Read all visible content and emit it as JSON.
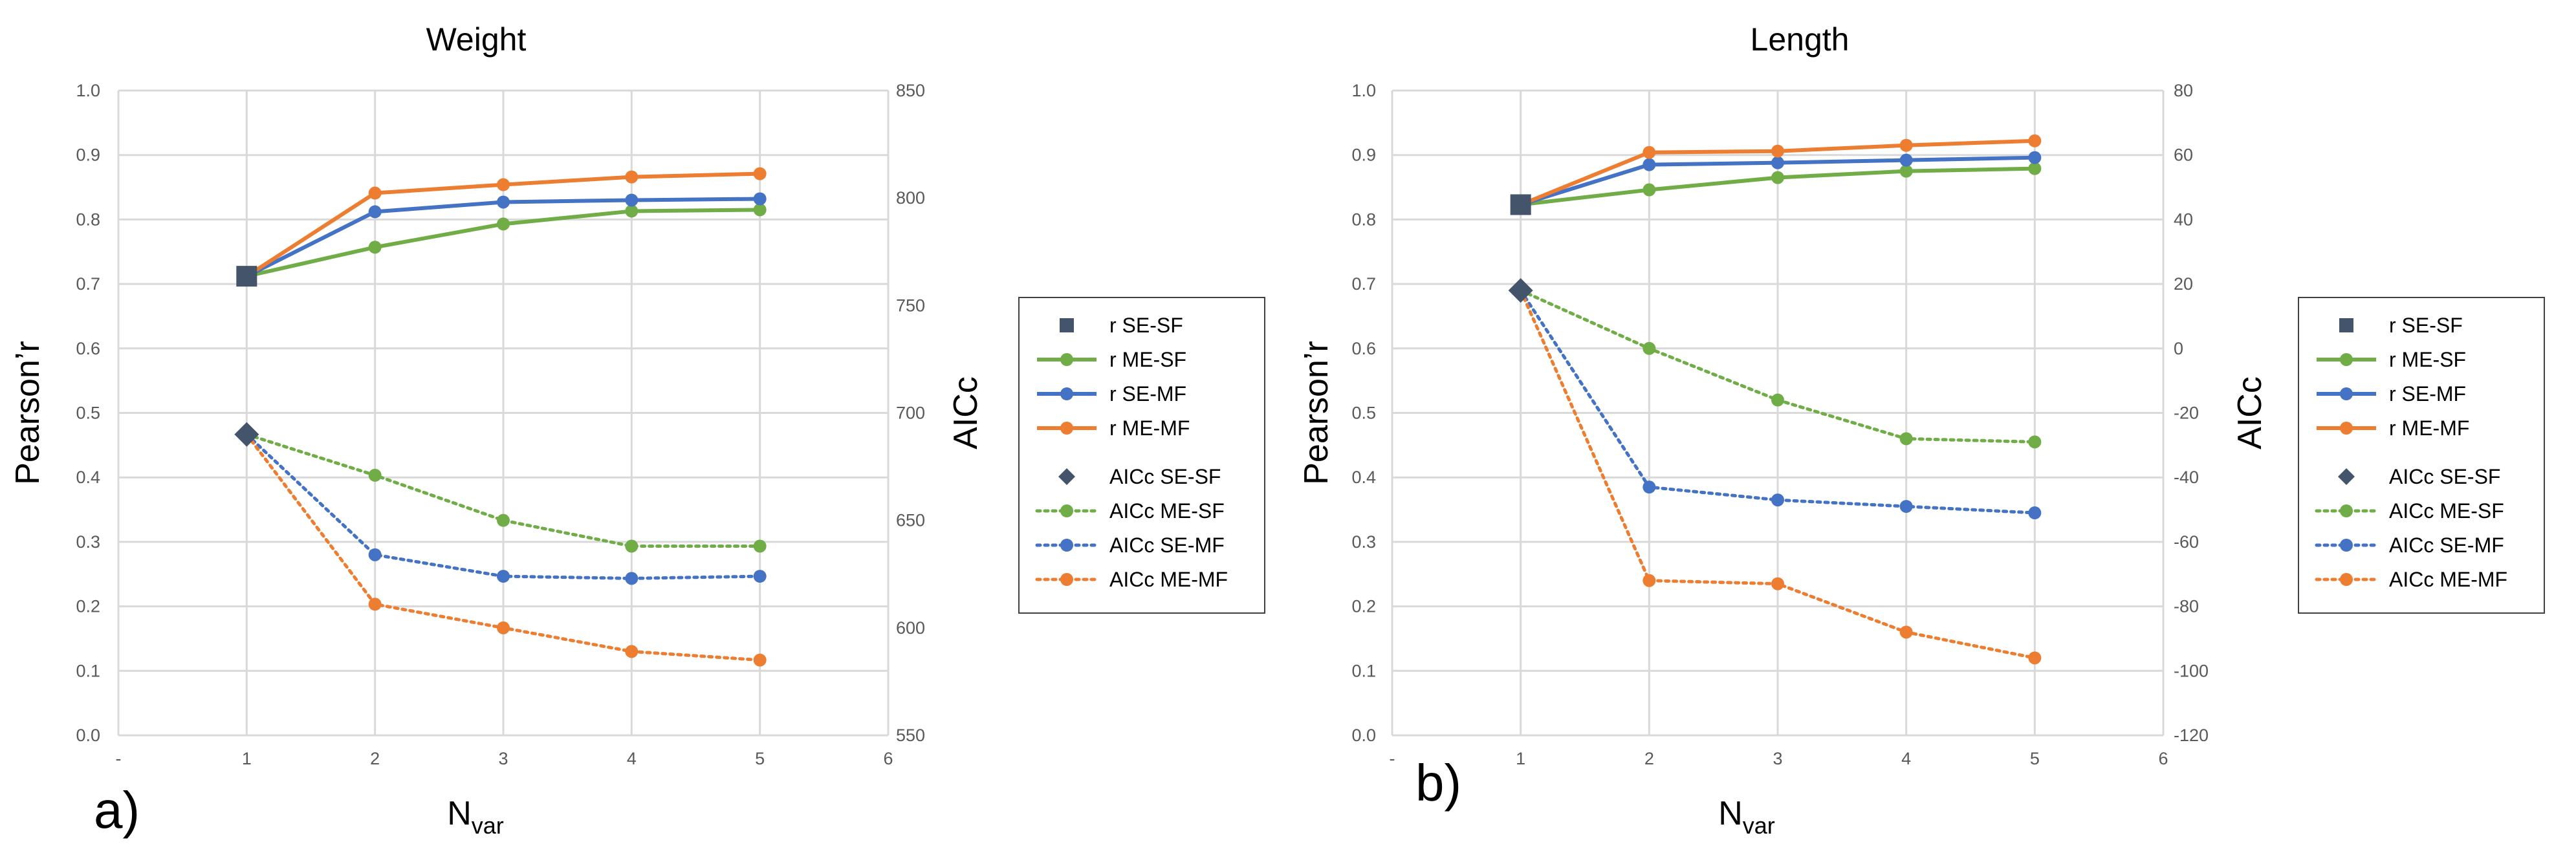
{
  "chart_data": [
    {
      "type": "line",
      "title": "Weight",
      "panel_label": "a)",
      "xlabel": "N",
      "xlabel_sub": "var",
      "ylabel": "Pearson’r",
      "y2label": "AICc",
      "x_ticks": [
        "-",
        "1",
        "2",
        "3",
        "4",
        "5",
        "6"
      ],
      "xlim": [
        0,
        6
      ],
      "ylim": [
        0,
        1
      ],
      "y_ticks": [
        "0.0",
        "0.1",
        "0.2",
        "0.3",
        "0.4",
        "0.5",
        "0.6",
        "0.7",
        "0.8",
        "0.9",
        "1.0"
      ],
      "y2lim": [
        550,
        850
      ],
      "y2_ticks": [
        "550",
        "600",
        "650",
        "700",
        "750",
        "800",
        "850"
      ],
      "series": [
        {
          "name": "r SE-SF",
          "axis": "left",
          "style": "marker-square",
          "color": "#44546a",
          "x": [
            1
          ],
          "values": [
            0.712
          ]
        },
        {
          "name": "r ME-SF",
          "axis": "left",
          "style": "solid",
          "color": "#70ad47",
          "x": [
            1,
            2,
            3,
            4,
            5
          ],
          "values": [
            0.712,
            0.757,
            0.793,
            0.813,
            0.815
          ]
        },
        {
          "name": "r SE-MF",
          "axis": "left",
          "style": "solid",
          "color": "#4472c4",
          "x": [
            1,
            2,
            3,
            4,
            5
          ],
          "values": [
            0.712,
            0.812,
            0.827,
            0.83,
            0.832
          ]
        },
        {
          "name": "r ME-MF",
          "axis": "left",
          "style": "solid",
          "color": "#ed7d31",
          "x": [
            1,
            2,
            3,
            4,
            5
          ],
          "values": [
            0.712,
            0.841,
            0.854,
            0.866,
            0.871
          ]
        },
        {
          "name": "AICc SE-SF",
          "axis": "right",
          "style": "marker-diamond",
          "color": "#44546a",
          "x": [
            1
          ],
          "values": [
            690
          ]
        },
        {
          "name": "AICc ME-SF",
          "axis": "right",
          "style": "dotted",
          "color": "#70ad47",
          "x": [
            1,
            2,
            3,
            4,
            5
          ],
          "values": [
            690,
            671,
            650,
            638,
            638
          ]
        },
        {
          "name": "AICc SE-MF",
          "axis": "right",
          "style": "dotted",
          "color": "#4472c4",
          "x": [
            1,
            2,
            3,
            4,
            5
          ],
          "values": [
            690,
            634,
            624,
            623,
            624
          ]
        },
        {
          "name": "AICc ME-MF",
          "axis": "right",
          "style": "dotted",
          "color": "#ed7d31",
          "x": [
            1,
            2,
            3,
            4,
            5
          ],
          "values": [
            690,
            611,
            600,
            589,
            585
          ]
        }
      ]
    },
    {
      "type": "line",
      "title": "Length",
      "panel_label": "b)",
      "xlabel": "N",
      "xlabel_sub": "var",
      "ylabel": "Pearson’r",
      "y2label": "AICc",
      "x_ticks": [
        "-",
        "1",
        "2",
        "3",
        "4",
        "5",
        "6"
      ],
      "xlim": [
        0,
        6
      ],
      "ylim": [
        0,
        1
      ],
      "y_ticks": [
        "0.0",
        "0.1",
        "0.2",
        "0.3",
        "0.4",
        "0.5",
        "0.6",
        "0.7",
        "0.8",
        "0.9",
        "1.0"
      ],
      "y2lim": [
        -120,
        80
      ],
      "y2_ticks": [
        "-120",
        "-100",
        "-80",
        "-60",
        "-40",
        "-20",
        "0",
        "20",
        "40",
        "60",
        "80"
      ],
      "series": [
        {
          "name": "r SE-SF",
          "axis": "left",
          "style": "marker-square",
          "color": "#44546a",
          "x": [
            1
          ],
          "values": [
            0.823
          ]
        },
        {
          "name": "r ME-SF",
          "axis": "left",
          "style": "solid",
          "color": "#70ad47",
          "x": [
            1,
            2,
            3,
            4,
            5
          ],
          "values": [
            0.823,
            0.846,
            0.865,
            0.875,
            0.879
          ]
        },
        {
          "name": "r SE-MF",
          "axis": "left",
          "style": "solid",
          "color": "#4472c4",
          "x": [
            1,
            2,
            3,
            4,
            5
          ],
          "values": [
            0.823,
            0.885,
            0.888,
            0.892,
            0.896
          ]
        },
        {
          "name": "r ME-MF",
          "axis": "left",
          "style": "solid",
          "color": "#ed7d31",
          "x": [
            1,
            2,
            3,
            4,
            5
          ],
          "values": [
            0.823,
            0.904,
            0.906,
            0.915,
            0.922
          ]
        },
        {
          "name": "AICc SE-SF",
          "axis": "right",
          "style": "marker-diamond",
          "color": "#44546a",
          "x": [
            1
          ],
          "values": [
            18
          ]
        },
        {
          "name": "AICc ME-SF",
          "axis": "right",
          "style": "dotted",
          "color": "#70ad47",
          "x": [
            1,
            2,
            3,
            4,
            5
          ],
          "values": [
            18,
            0,
            -16,
            -28,
            -29
          ]
        },
        {
          "name": "AICc SE-MF",
          "axis": "right",
          "style": "dotted",
          "color": "#4472c4",
          "x": [
            1,
            2,
            3,
            4,
            5
          ],
          "values": [
            18,
            -43,
            -47,
            -49,
            -51
          ]
        },
        {
          "name": "AICc ME-MF",
          "axis": "right",
          "style": "dotted",
          "color": "#ed7d31",
          "x": [
            1,
            2,
            3,
            4,
            5
          ],
          "values": [
            18,
            -72,
            -73,
            -88,
            -96
          ]
        }
      ]
    }
  ]
}
